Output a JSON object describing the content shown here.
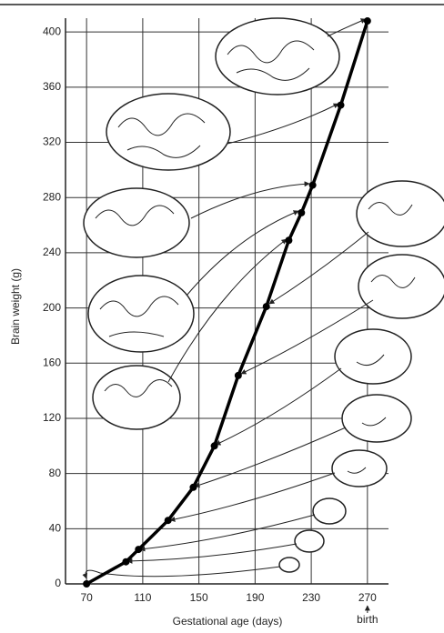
{
  "chart_data": {
    "type": "line",
    "x_label": "Gestational age (days)",
    "y_label": "Brain weight (g)",
    "annotation": "birth",
    "x": [
      70,
      98,
      107,
      128,
      146,
      161,
      178,
      198,
      214,
      223,
      231,
      251,
      270
    ],
    "values": [
      0,
      16,
      25,
      46,
      70,
      100,
      151,
      201,
      249,
      269,
      289,
      347,
      408
    ],
    "color": "#000000",
    "xlim": [
      55,
      285
    ],
    "xticks": [
      70,
      110,
      150,
      190,
      230,
      270
    ],
    "ylim": [
      0,
      410
    ],
    "yticks": [
      0,
      40,
      80,
      120,
      160,
      200,
      240,
      280,
      320,
      360,
      400
    ],
    "grid": true
  }
}
